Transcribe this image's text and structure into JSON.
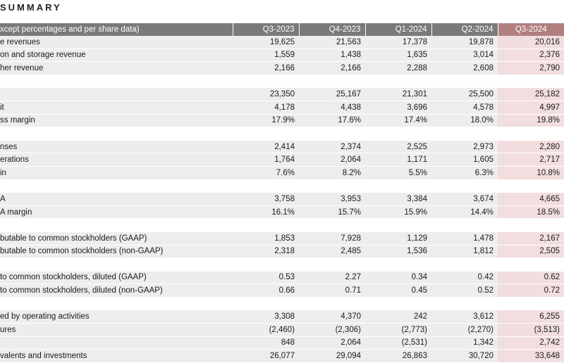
{
  "page_title": "SUMMARY",
  "table": {
    "header_label": "xcept percentages and per share data)",
    "columns": [
      "Q3-2023",
      "Q4-2023",
      "Q1-2024",
      "Q2-2024",
      "Q3-2024"
    ],
    "highlight_column": "Q3-2024",
    "groups": [
      {
        "rows": [
          {
            "label": "e revenues",
            "values": [
              "19,625",
              "21,563",
              "17,378",
              "19,878",
              "20,016"
            ]
          },
          {
            "label": "on and storage revenue",
            "values": [
              "1,559",
              "1,438",
              "1,635",
              "3,014",
              "2,376"
            ]
          },
          {
            "label": "her revenue",
            "values": [
              "2,166",
              "2,166",
              "2,288",
              "2,608",
              "2,790"
            ]
          }
        ]
      },
      {
        "rows": [
          {
            "label": "",
            "values": [
              "23,350",
              "25,167",
              "21,301",
              "25,500",
              "25,182"
            ]
          },
          {
            "label": "it",
            "values": [
              "4,178",
              "4,438",
              "3,696",
              "4,578",
              "4,997"
            ]
          },
          {
            "label": "ss margin",
            "values": [
              "17.9%",
              "17.6%",
              "17.4%",
              "18.0%",
              "19.8%"
            ]
          }
        ]
      },
      {
        "rows": [
          {
            "label": "nses",
            "values": [
              "2,414",
              "2,374",
              "2,525",
              "2,973",
              "2,280"
            ]
          },
          {
            "label": "erations",
            "values": [
              "1,764",
              "2,064",
              "1,171",
              "1,605",
              "2,717"
            ]
          },
          {
            "label": "in",
            "values": [
              "7.6%",
              "8.2%",
              "5.5%",
              "6.3%",
              "10.8%"
            ]
          }
        ]
      },
      {
        "rows": [
          {
            "label": "A",
            "values": [
              "3,758",
              "3,953",
              "3,384",
              "3,674",
              "4,665"
            ]
          },
          {
            "label": "A margin",
            "values": [
              "16.1%",
              "15.7%",
              "15.9%",
              "14.4%",
              "18.5%"
            ]
          }
        ]
      },
      {
        "rows": [
          {
            "label": "butable to common stockholders (GAAP)",
            "values": [
              "1,853",
              "7,928",
              "1,129",
              "1,478",
              "2,167"
            ]
          },
          {
            "label": "butable to common stockholders (non-GAAP)",
            "values": [
              "2,318",
              "2,485",
              "1,536",
              "1,812",
              "2,505"
            ]
          }
        ]
      },
      {
        "rows": [
          {
            "label": "to common stockholders, diluted (GAAP)",
            "values": [
              "0.53",
              "2.27",
              "0.34",
              "0.42",
              "0.62"
            ]
          },
          {
            "label": "to common stockholders, diluted (non-GAAP)",
            "values": [
              "0.66",
              "0.71",
              "0.45",
              "0.52",
              "0.72"
            ]
          }
        ]
      },
      {
        "rows": [
          {
            "label": "ed by operating activities",
            "values": [
              "3,308",
              "4,370",
              "242",
              "3,612",
              "6,255"
            ]
          },
          {
            "label": "ures",
            "values": [
              "(2,460)",
              "(2,306)",
              "(2,773)",
              "(2,270)",
              "(3,513)"
            ]
          },
          {
            "label": "",
            "values": [
              "848",
              "2,064",
              "(2,531)",
              "1,342",
              "2,742"
            ]
          },
          {
            "label": "valents and investments",
            "values": [
              "26,077",
              "29,094",
              "26,863",
              "30,720",
              "33,648"
            ]
          }
        ]
      }
    ]
  },
  "colors": {
    "header_bg": "#7a7a7a",
    "header_highlight_bg": "#b27f7f",
    "row_shade": "#ededed",
    "highlight_cell": "#f2dede"
  }
}
